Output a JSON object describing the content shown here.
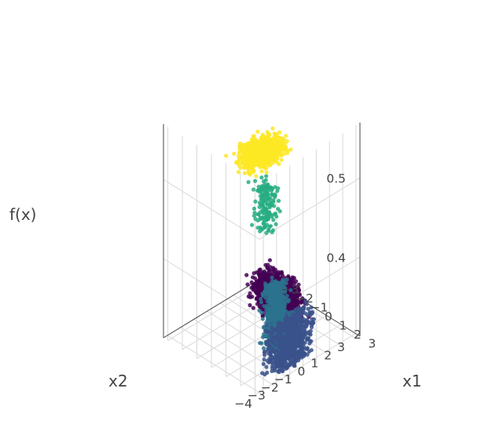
{
  "chart_data": {
    "type": "scatter3d",
    "title": "",
    "colorscale": "viridis",
    "axes": {
      "x1": {
        "label": "x1",
        "ticks": [
          "−3",
          "−2",
          "−1",
          "0",
          "1",
          "2",
          "3"
        ],
        "range": [
          -3.3,
          3.3
        ]
      },
      "x2": {
        "label": "x2",
        "ticks": [
          "−4",
          "−3",
          "−2",
          "−1",
          "0",
          "1",
          "2",
          "3"
        ],
        "range": [
          -4.3,
          3.3
        ]
      },
      "z": {
        "label": "f(x)",
        "ticks": [
          "0.4",
          "0.5"
        ],
        "range": [
          0.3,
          0.57
        ]
      }
    },
    "grid": true,
    "clusters": [
      {
        "name": "",
        "color": "#fde725",
        "x1": [
          -0.6,
          1.6
        ],
        "x2": [
          -3.0,
          0.8
        ],
        "z": [
          0.535,
          0.555
        ],
        "count": 900
      },
      {
        "name": "",
        "color": "#27ad81",
        "x1": [
          0.3,
          2.2
        ],
        "x2": [
          -2.4,
          -0.6
        ],
        "z": [
          0.46,
          0.52
        ],
        "count": 150
      },
      {
        "name": "",
        "color": "#2c728e",
        "x1": [
          1.2,
          2.6
        ],
        "x2": [
          -2.6,
          -0.4
        ],
        "z": [
          0.32,
          0.4
        ],
        "count": 700
      },
      {
        "name": "",
        "color": "#3b528b",
        "x1": [
          1.8,
          3.0
        ],
        "x2": [
          -3.2,
          1.0
        ],
        "z": [
          0.3,
          0.36
        ],
        "count": 900
      },
      {
        "name": "",
        "color": "#440154",
        "x1": [
          -2.8,
          1.0
        ],
        "x2": [
          0.4,
          3.0
        ],
        "z": [
          0.3,
          0.34
        ],
        "count": 1300
      }
    ]
  }
}
